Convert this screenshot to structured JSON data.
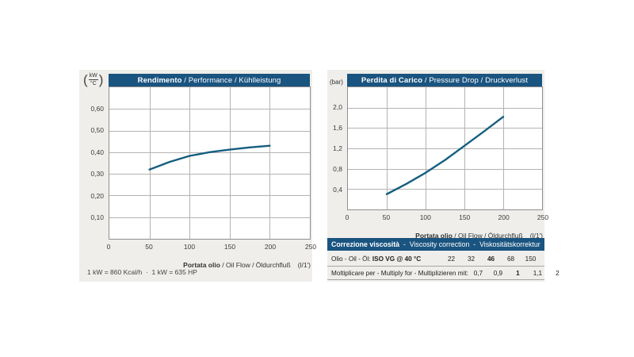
{
  "colors": {
    "accent_blue": "#1a5480",
    "curve": "#155e80",
    "panel_bg": "#efeeeb",
    "grid": "#b4b3b0"
  },
  "left_chart": {
    "unit_top": "kW",
    "unit_bottom": "°C",
    "title_bold": "Rendimento",
    "title_rest": " / Performance / Kühlleistung",
    "x_label_bold": "Portata olio",
    "x_label_rest": " / Oil Flow / Öldurchfluß",
    "x_label_unit": "(l/1')",
    "footnote": "1 kW = 860 Kcal/h  ·  1 kW = 635 HP"
  },
  "right_chart": {
    "unit": "(bar)",
    "title_bold": "Perdita di Carico",
    "title_rest": " / Pressure Drop / Druckverlust",
    "x_label_bold": "Portata olio",
    "x_label_rest": " / Oil Flow / Öldurchfluß",
    "x_label_unit": "(l/1')"
  },
  "viscosity_table": {
    "header_bold": "Correzione viscosità",
    "header_rest": "  -  Viscosity correction  -  Viskositätskorrektur",
    "row1_label_prefix": "Olio - Oil - Öl: ",
    "row1_label_bold": "ISO VG @ 40 °C",
    "row1_values": [
      "22",
      "32",
      "46",
      "68",
      "150"
    ],
    "row1_bold_index": 2,
    "row2_label": "Moltiplicare per - Multiply for - Multiplizieren mit:",
    "row2_values": [
      "0,7",
      "0,9",
      "1",
      "1,1",
      "2"
    ],
    "row2_bold_index": 2
  },
  "chart_data": [
    {
      "type": "line",
      "title": "Rendimento / Performance / Kühlleistung",
      "xlabel": "Portata olio / Oil Flow / Öldurchfluß (l/1')",
      "ylabel": "kW/°C",
      "x": [
        50,
        75,
        100,
        125,
        150,
        175,
        200
      ],
      "y": [
        0.32,
        0.355,
        0.383,
        0.4,
        0.412,
        0.422,
        0.43
      ],
      "xlim": [
        0,
        250
      ],
      "ylim": [
        0,
        0.7
      ],
      "x_ticks": [
        0,
        50,
        100,
        150,
        200,
        250
      ],
      "x_tick_labels": [
        "0",
        "50",
        "100",
        "150",
        "200",
        "250"
      ],
      "y_ticks": [
        0.1,
        0.2,
        0.3,
        0.4,
        0.5,
        0.6
      ],
      "y_tick_labels": [
        "0,10",
        "0,20",
        "0,30",
        "0,40",
        "0,50",
        "0,60"
      ],
      "grid": true,
      "legend": "none"
    },
    {
      "type": "line",
      "title": "Perdita di Carico / Pressure Drop / Druckverlust",
      "xlabel": "Portata olio / Oil Flow / Öldurchfluß (l/1')",
      "ylabel": "bar",
      "x": [
        50,
        75,
        100,
        125,
        150,
        175,
        200
      ],
      "y": [
        0.3,
        0.5,
        0.72,
        0.97,
        1.25,
        1.53,
        1.82
      ],
      "xlim": [
        0,
        250
      ],
      "ylim": [
        0,
        2.4
      ],
      "x_ticks": [
        0,
        50,
        100,
        150,
        200,
        250
      ],
      "x_tick_labels": [
        "0",
        "50",
        "100",
        "150",
        "200",
        "250"
      ],
      "y_ticks": [
        0.4,
        0.8,
        1.2,
        1.6,
        2.0
      ],
      "y_tick_labels": [
        "0,4",
        "0,8",
        "1,2",
        "1,6",
        "2,0"
      ],
      "grid": true,
      "legend": "none"
    }
  ]
}
